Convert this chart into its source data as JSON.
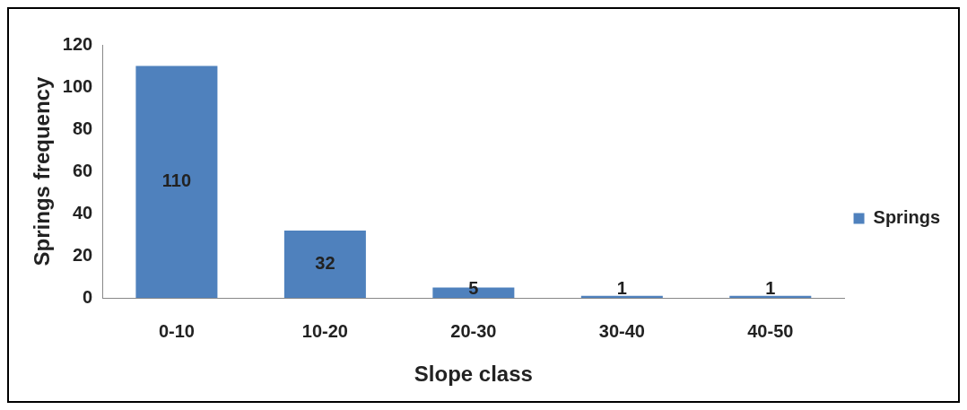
{
  "chart_data": {
    "type": "bar",
    "xlabel": "Slope class",
    "ylabel": "Springs frequency",
    "categories": [
      "0-10",
      "10-20",
      "20-30",
      "30-40",
      "40-50"
    ],
    "series": [
      {
        "name": "Springs",
        "color": "#4f81bd",
        "values": [
          110,
          32,
          5,
          1,
          1
        ]
      }
    ],
    "ylim": [
      0,
      120
    ],
    "yticks": [
      0,
      20,
      40,
      60,
      80,
      100,
      120
    ],
    "grid": false,
    "legend": "right",
    "data_labels": true
  }
}
